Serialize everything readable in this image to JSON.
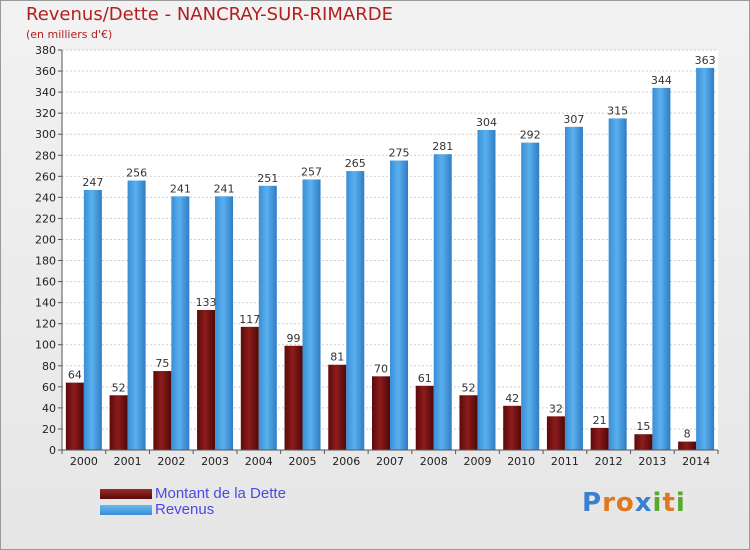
{
  "title": "Revenus/Dette - NANCRAY-SUR-RIMARDE",
  "subtitle": "(en milliers d'€)",
  "logo": {
    "text": "Proxiti",
    "letters": [
      "P",
      "r",
      "o",
      "x",
      "i",
      "t",
      "i"
    ],
    "colors": [
      "#3a7fd0",
      "#e07820",
      "#e07820",
      "#3a7fd0",
      "#5aa830",
      "#e07820",
      "#5aa830"
    ]
  },
  "legend": {
    "position": "bottom-left",
    "items": [
      {
        "label": "Montant de la Dette",
        "color": "#7a1212"
      },
      {
        "label": "Revenus",
        "color": "#4a9ee0"
      }
    ]
  },
  "chart_data": {
    "type": "bar",
    "title": "Revenus/Dette - NANCRAY-SUR-RIMARDE",
    "subtitle": "(en milliers d'€)",
    "categories": [
      "2000",
      "2001",
      "2002",
      "2003",
      "2004",
      "2005",
      "2006",
      "2007",
      "2008",
      "2009",
      "2010",
      "2011",
      "2012",
      "2013",
      "2014"
    ],
    "series": [
      {
        "name": "Montant de la Dette",
        "color": "#7a1212",
        "values": [
          64,
          52,
          75,
          133,
          117,
          99,
          81,
          70,
          61,
          52,
          42,
          32,
          21,
          15,
          8
        ]
      },
      {
        "name": "Revenus",
        "color": "#4a9ee0",
        "values": [
          247,
          256,
          241,
          241,
          251,
          257,
          265,
          275,
          281,
          304,
          292,
          307,
          315,
          344,
          363
        ]
      }
    ],
    "ylim": [
      0,
      380
    ],
    "yticks": [
      0,
      20,
      40,
      60,
      80,
      100,
      120,
      140,
      160,
      180,
      200,
      220,
      240,
      260,
      280,
      300,
      320,
      340,
      360,
      380
    ],
    "grid": true,
    "data_labels": true
  }
}
